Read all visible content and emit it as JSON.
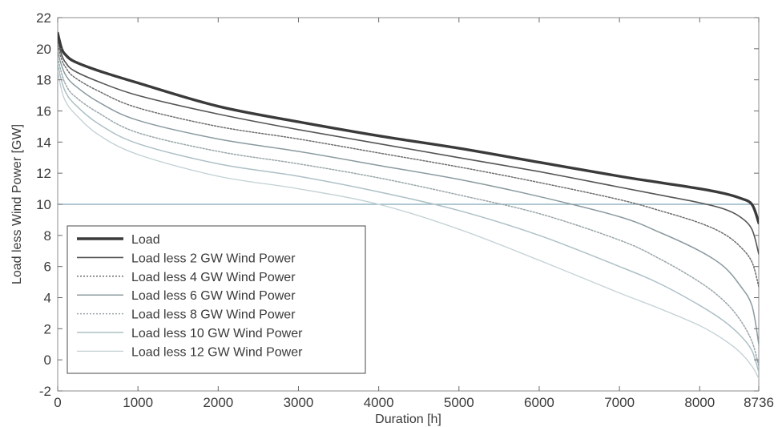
{
  "chart_data": {
    "type": "line",
    "title": "",
    "xlabel": "Duration [h]",
    "ylabel": "Load less Wind Power [GW]",
    "xlim": [
      0,
      8736
    ],
    "ylim": [
      -2,
      22
    ],
    "xticks": [
      0,
      1000,
      2000,
      3000,
      4000,
      5000,
      6000,
      7000,
      8000,
      8736
    ],
    "yticks": [
      -2,
      0,
      2,
      4,
      6,
      8,
      10,
      12,
      14,
      16,
      18,
      20,
      22
    ],
    "grid": false,
    "legend_position": "bottom-left",
    "threshold_line": {
      "y": 10,
      "color": "#7fa6b8"
    },
    "x": [
      0,
      50,
      100,
      200,
      500,
      1000,
      2000,
      3000,
      4000,
      5000,
      6000,
      7000,
      7500,
      8000,
      8300,
      8500,
      8650,
      8736
    ],
    "series": [
      {
        "name": "Load",
        "color": "#3a3a3a",
        "dash": "",
        "width": 3.4,
        "values": [
          21.0,
          20.0,
          19.6,
          19.2,
          18.6,
          17.8,
          16.3,
          15.3,
          14.4,
          13.6,
          12.7,
          11.8,
          11.4,
          11.0,
          10.7,
          10.4,
          10.0,
          8.8
        ]
      },
      {
        "name": "Load less 2 GW Wind Power",
        "color": "#555555",
        "dash": "",
        "width": 1.6,
        "values": [
          20.6,
          19.6,
          19.1,
          18.6,
          17.9,
          17.0,
          15.8,
          14.8,
          13.9,
          13.0,
          12.1,
          11.1,
          10.6,
          10.1,
          9.7,
          9.2,
          8.4,
          6.8
        ]
      },
      {
        "name": "Load less 4 GW Wind Power",
        "color": "#6e6e6e",
        "dash": "2,2",
        "width": 1.5,
        "values": [
          20.2,
          19.3,
          18.8,
          18.2,
          17.3,
          16.2,
          15.0,
          14.2,
          13.3,
          12.4,
          11.4,
          10.3,
          9.6,
          8.8,
          8.1,
          7.3,
          6.3,
          4.7
        ]
      },
      {
        "name": "Load less 6 GW Wind Power",
        "color": "#8a9a9f",
        "dash": "",
        "width": 1.5,
        "values": [
          19.8,
          18.9,
          18.3,
          17.7,
          16.6,
          15.4,
          14.2,
          13.4,
          12.5,
          11.6,
          10.5,
          9.2,
          8.2,
          7.0,
          6.0,
          4.8,
          3.5,
          1.0
        ]
      },
      {
        "name": "Load less 8 GW Wind Power",
        "color": "#9aa6aa",
        "dash": "2,2",
        "width": 1.5,
        "values": [
          19.4,
          18.4,
          17.7,
          17.0,
          15.9,
          14.6,
          13.4,
          12.6,
          11.7,
          10.6,
          9.4,
          7.7,
          6.5,
          5.0,
          3.8,
          2.6,
          1.2,
          -0.4
        ]
      },
      {
        "name": "Load less 10 GW Wind Power",
        "color": "#adc0c6",
        "dash": "",
        "width": 1.5,
        "values": [
          19.0,
          17.9,
          17.2,
          16.5,
          15.2,
          13.9,
          12.6,
          11.8,
          10.8,
          9.6,
          8.0,
          6.0,
          4.9,
          3.5,
          2.5,
          1.6,
          0.6,
          -0.8
        ]
      },
      {
        "name": "Load less 12 GW Wind Power",
        "color": "#c2d0d4",
        "dash": "",
        "width": 1.3,
        "values": [
          18.6,
          17.3,
          16.6,
          15.9,
          14.5,
          13.2,
          11.8,
          11.0,
          10.0,
          8.4,
          6.4,
          4.3,
          3.3,
          2.2,
          1.3,
          0.5,
          -0.4,
          -1.2
        ]
      }
    ]
  }
}
